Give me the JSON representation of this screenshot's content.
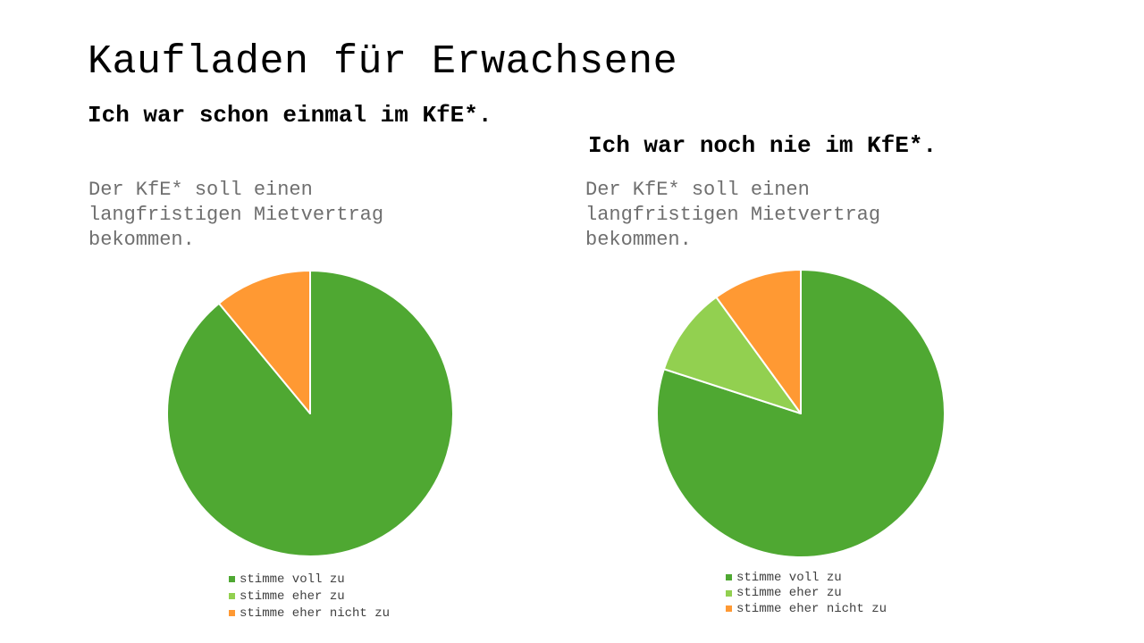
{
  "slide": {
    "title": "Kaufladen für Erwachsene"
  },
  "chart_data": [
    {
      "type": "pie",
      "title": "Ich war schon einmal im KfE*.",
      "subtitle": "Der KfE* soll einen langfristigen Mietvertrag bekommen.",
      "categories": [
        "stimme voll zu",
        "stimme eher zu",
        "stimme eher nicht zu"
      ],
      "values": [
        89,
        0,
        11
      ],
      "colors": [
        "#4fa832",
        "#92d050",
        "#ff9933"
      ],
      "legend": "bottom"
    },
    {
      "type": "pie",
      "title": "Ich war noch nie im KfE*.",
      "subtitle": "Der KfE* soll einen langfristigen Mietvertrag bekommen.",
      "categories": [
        "stimme voll zu",
        "stimme eher zu",
        "stimme eher nicht zu"
      ],
      "values": [
        80,
        10,
        10
      ],
      "colors": [
        "#4fa832",
        "#92d050",
        "#ff9933"
      ],
      "legend": "bottom"
    }
  ]
}
